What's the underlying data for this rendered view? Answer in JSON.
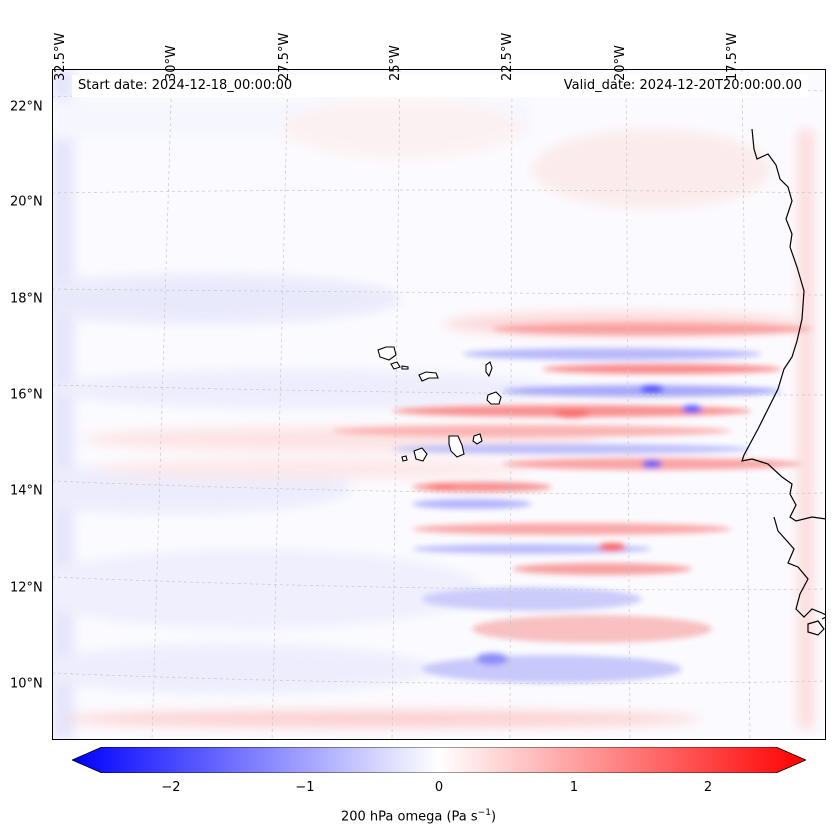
{
  "map": {
    "title_left": "Start date: 2024-12-18_00:00:00",
    "title_right": "Valid_date: 2024-12-20T20:00:00.00",
    "lon_labels": [
      "32.5°W",
      "30°W",
      "27.5°W",
      "25°W",
      "22.5°W",
      "20°W",
      "17.5°W"
    ],
    "lat_labels": [
      "22°N",
      "20°N",
      "18°N",
      "16°N",
      "14°N",
      "12°N",
      "10°N"
    ],
    "variable": "200 hPa omega",
    "units": "(Pa s",
    "units_exp": "−1",
    "units_close": ")",
    "colormap": "bwr"
  },
  "colorbar": {
    "ticks": [
      "−2",
      "−1",
      "0",
      "1",
      "2"
    ],
    "tick_values": [
      -2,
      -1,
      0,
      1,
      2
    ],
    "vmin": -2.7,
    "vmax": 2.7,
    "low_color": "#0000ff",
    "mid_color": "#ffffff",
    "high_color": "#ff0000"
  },
  "features": {
    "islands": [
      "Santo Antão",
      "São Vicente",
      "São Nicolau",
      "Sal",
      "Boa Vista",
      "Maio",
      "Santiago",
      "Fogo",
      "Brava"
    ],
    "coast": "West African coastline"
  }
}
